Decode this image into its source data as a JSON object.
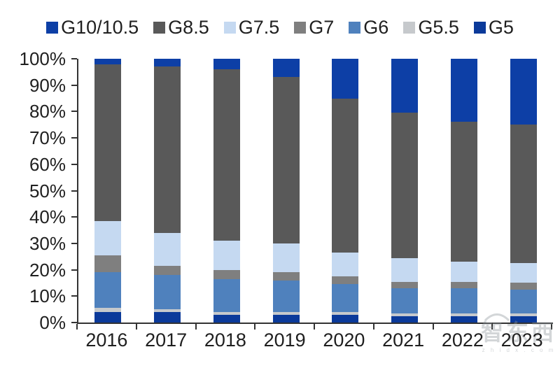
{
  "chart_data": {
    "type": "bar",
    "stacked": true,
    "title": "",
    "xlabel": "",
    "ylabel": "",
    "ylim": [
      0,
      100
    ],
    "grid": false,
    "legend_position": "top",
    "categories": [
      "2016",
      "2017",
      "2018",
      "2019",
      "2020",
      "2021",
      "2022",
      "2023"
    ],
    "y_ticks": [
      "100%",
      "90%",
      "80%",
      "70%",
      "60%",
      "50%",
      "40%",
      "30%",
      "20%",
      "10%",
      "0%"
    ],
    "legend_order": [
      "G10/10.5",
      "G8.5",
      "G7.5",
      "G7",
      "G6",
      "G5.5",
      "G5"
    ],
    "series": [
      {
        "name": "G5",
        "color": "#0b3a9a",
        "values": [
          4,
          4,
          3,
          3,
          3,
          2.5,
          2.5,
          2.5
        ]
      },
      {
        "name": "G5.5",
        "color": "#c6c9cc",
        "values": [
          1.5,
          1,
          1,
          1,
          1,
          1,
          1,
          1
        ]
      },
      {
        "name": "G6",
        "color": "#4f81bd",
        "values": [
          13.5,
          13,
          12.5,
          12,
          10.5,
          9.5,
          9.5,
          9
        ]
      },
      {
        "name": "G7",
        "color": "#7f7f7f",
        "values": [
          6.5,
          3.5,
          3.5,
          3,
          3,
          2.5,
          2.5,
          2.5
        ]
      },
      {
        "name": "G7.5",
        "color": "#c5d9f1",
        "values": [
          13,
          12.5,
          11,
          11,
          9,
          9,
          7.5,
          7.5
        ]
      },
      {
        "name": "G8.5",
        "color": "#595959",
        "values": [
          59.5,
          63,
          65,
          63,
          58.5,
          55,
          53,
          52.5
        ]
      },
      {
        "name": "G10/10.5",
        "color": "#0d3fa6",
        "values": [
          2,
          3,
          4,
          7,
          15,
          20.5,
          24,
          25
        ]
      }
    ]
  },
  "watermark": {
    "text": "智东西",
    "subtext": "z h i d x . c o m"
  },
  "colors": {
    "axis": "#333333",
    "text": "#1f1f1f"
  }
}
